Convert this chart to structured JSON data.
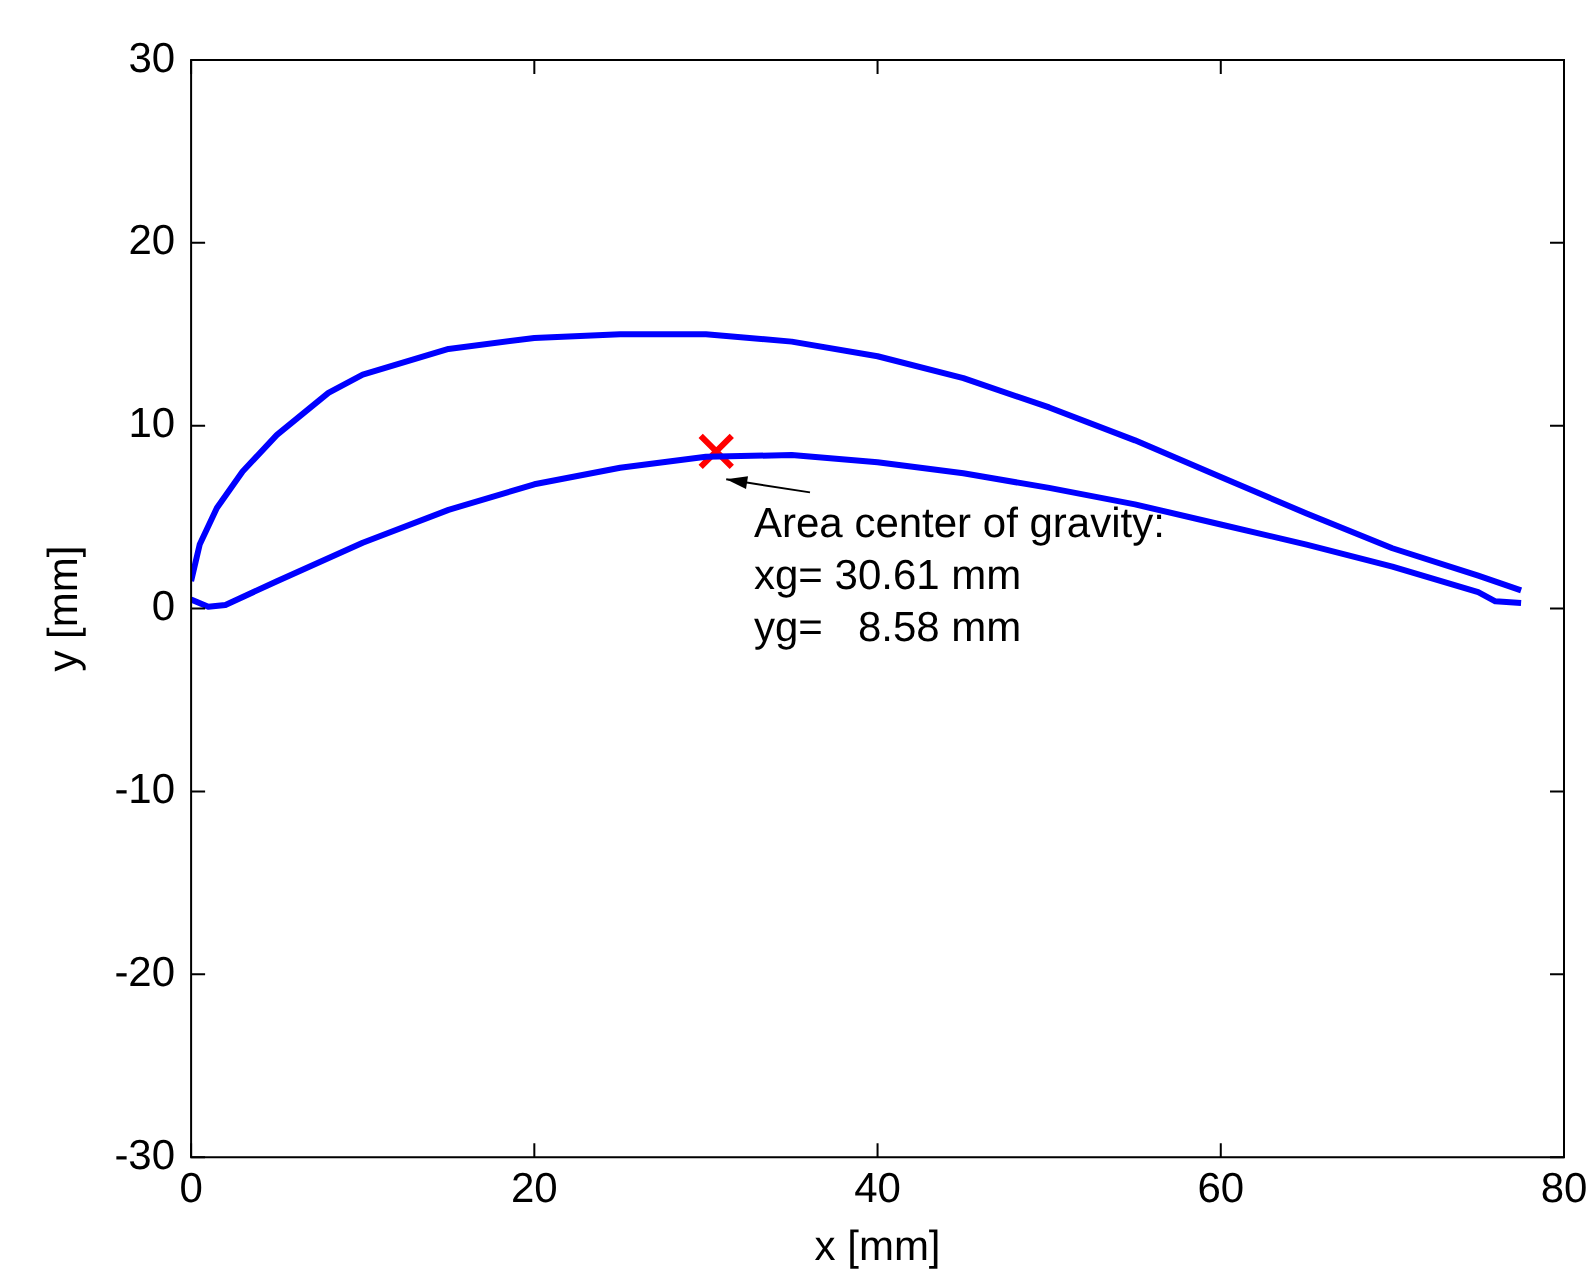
{
  "chart_data": {
    "type": "line",
    "xlabel": "x [mm]",
    "ylabel": "y [mm]",
    "xlim": [
      0,
      80
    ],
    "xticks": [
      0,
      20,
      40,
      60,
      80
    ],
    "ylim": [
      -30,
      30
    ],
    "yticks": [
      -30,
      -20,
      -10,
      0,
      10,
      20,
      30
    ],
    "grid": false,
    "legend": false,
    "marker": "none",
    "line_style": "solid",
    "series": [
      {
        "color": "#0000ff",
        "x": [
          0,
          0.5,
          1.5,
          3,
          5,
          8,
          10,
          15,
          20,
          25,
          30,
          35,
          40,
          45,
          50,
          55,
          60,
          65,
          70,
          75,
          77.5
        ],
        "values": [
          1.5,
          3.5,
          5.5,
          7.5,
          9.5,
          11.8,
          12.8,
          14.2,
          14.8,
          15,
          15,
          14.6,
          13.8,
          12.6,
          11,
          9.2,
          7.2,
          5.2,
          3.3,
          1.8,
          1
        ]
      },
      {
        "color": "#0000ff",
        "x": [
          0,
          1,
          2,
          5,
          10,
          15,
          20,
          25,
          30,
          35,
          40,
          45,
          50,
          55,
          60,
          65,
          70,
          75,
          76,
          77.5
        ],
        "values": [
          0.5,
          0.1,
          0.2,
          1.5,
          3.6,
          5.4,
          6.8,
          7.7,
          8.3,
          8.4,
          8,
          7.4,
          6.6,
          5.7,
          4.6,
          3.5,
          2.3,
          0.9,
          0.4,
          0.3
        ]
      },
      {
        "type": "scatter",
        "color": "#ff0000",
        "marker": "cross",
        "x": [
          30.6
        ],
        "values": [
          8.6
        ]
      }
    ],
    "annotations": [
      "Area center of gravity:\nxg= 30.61 mm\nyg=   8.58 mm"
    ]
  }
}
